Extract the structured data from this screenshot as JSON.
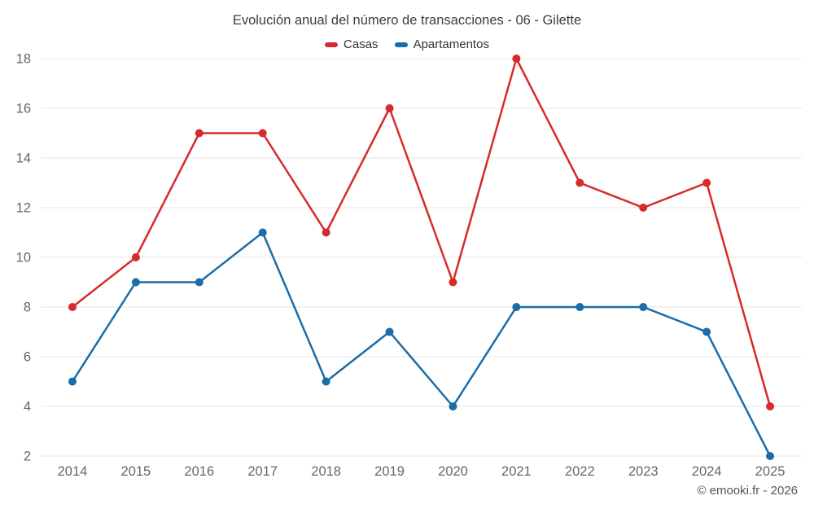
{
  "chart_data": {
    "type": "line",
    "title": "Evolución anual del número de transacciones - 06 - Gilette",
    "categories": [
      "2014",
      "2015",
      "2016",
      "2017",
      "2018",
      "2019",
      "2020",
      "2021",
      "2022",
      "2023",
      "2024",
      "2025"
    ],
    "series": [
      {
        "name": "Casas",
        "color": "#d62b2b",
        "values": [
          8,
          10,
          15,
          15,
          11,
          16,
          9,
          18,
          13,
          12,
          13,
          4
        ]
      },
      {
        "name": "Apartamentos",
        "color": "#1b6ca8",
        "values": [
          5,
          9,
          9,
          11,
          5,
          7,
          4,
          8,
          8,
          8,
          7,
          2
        ]
      }
    ],
    "ylim": [
      2,
      18
    ],
    "ytick_step": 2,
    "grid": true,
    "legend_position": "top",
    "grid_color": "#e6e6e6",
    "label_color": "#666666"
  },
  "footer": {
    "credits": "© emooki.fr - 2026"
  }
}
